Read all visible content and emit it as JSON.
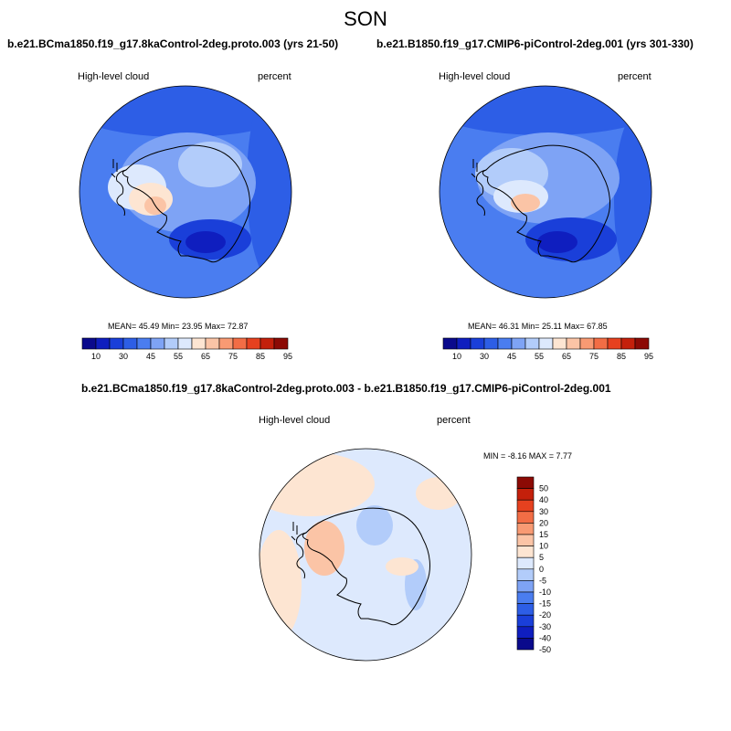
{
  "title": "SON",
  "panels": [
    {
      "title": "b.e21.BCma1850.f19_g17.8kaControl-2deg.proto.003 (yrs 21-50)",
      "left_label": "High-level cloud",
      "right_label": "percent",
      "stats": "MEAN=  45.49  Min=  23.95  Max=  72.87"
    },
    {
      "title": "b.e21.B1850.f19_g17.CMIP6-piControl-2deg.001 (yrs 301-330)",
      "left_label": "High-level cloud",
      "right_label": "percent",
      "stats": "MEAN=  46.31  Min=  25.11  Max=  67.85"
    },
    {
      "title": "b.e21.BCma1850.f19_g17.8kaControl-2deg.proto.003 - b.e21.B1850.f19_g17.CMIP6-piControl-2deg.001",
      "left_label": "High-level cloud",
      "right_label": "percent",
      "stats": "MIN =  -8.16 MAX =   7.77"
    }
  ],
  "colorbar_abs": {
    "colors": [
      "#0a0a8c",
      "#0f1ebf",
      "#1a3fd9",
      "#2d5ee6",
      "#4a7df0",
      "#7ea3f5",
      "#b2ccfa",
      "#dde9fd",
      "#fde5d2",
      "#fbc4a6",
      "#f89a73",
      "#f26d45",
      "#e6411f",
      "#c4200b",
      "#8c0a05"
    ],
    "ticks": [
      "10",
      "30",
      "45",
      "55",
      "65",
      "75",
      "85",
      "95"
    ]
  },
  "colorbar_diff": {
    "colors": [
      "#8c0a05",
      "#c4200b",
      "#e6411f",
      "#f26d45",
      "#f89a73",
      "#fbc4a6",
      "#fde5d2",
      "#dde9fd",
      "#b2ccfa",
      "#7ea3f5",
      "#4a7df0",
      "#2d5ee6",
      "#1a3fd9",
      "#0f1ebf",
      "#0a0a8c"
    ],
    "ticks": [
      "50",
      "40",
      "30",
      "20",
      "15",
      "10",
      "5",
      "0",
      "-5",
      "-10",
      "-15",
      "-20",
      "-30",
      "-40",
      "-50"
    ]
  }
}
